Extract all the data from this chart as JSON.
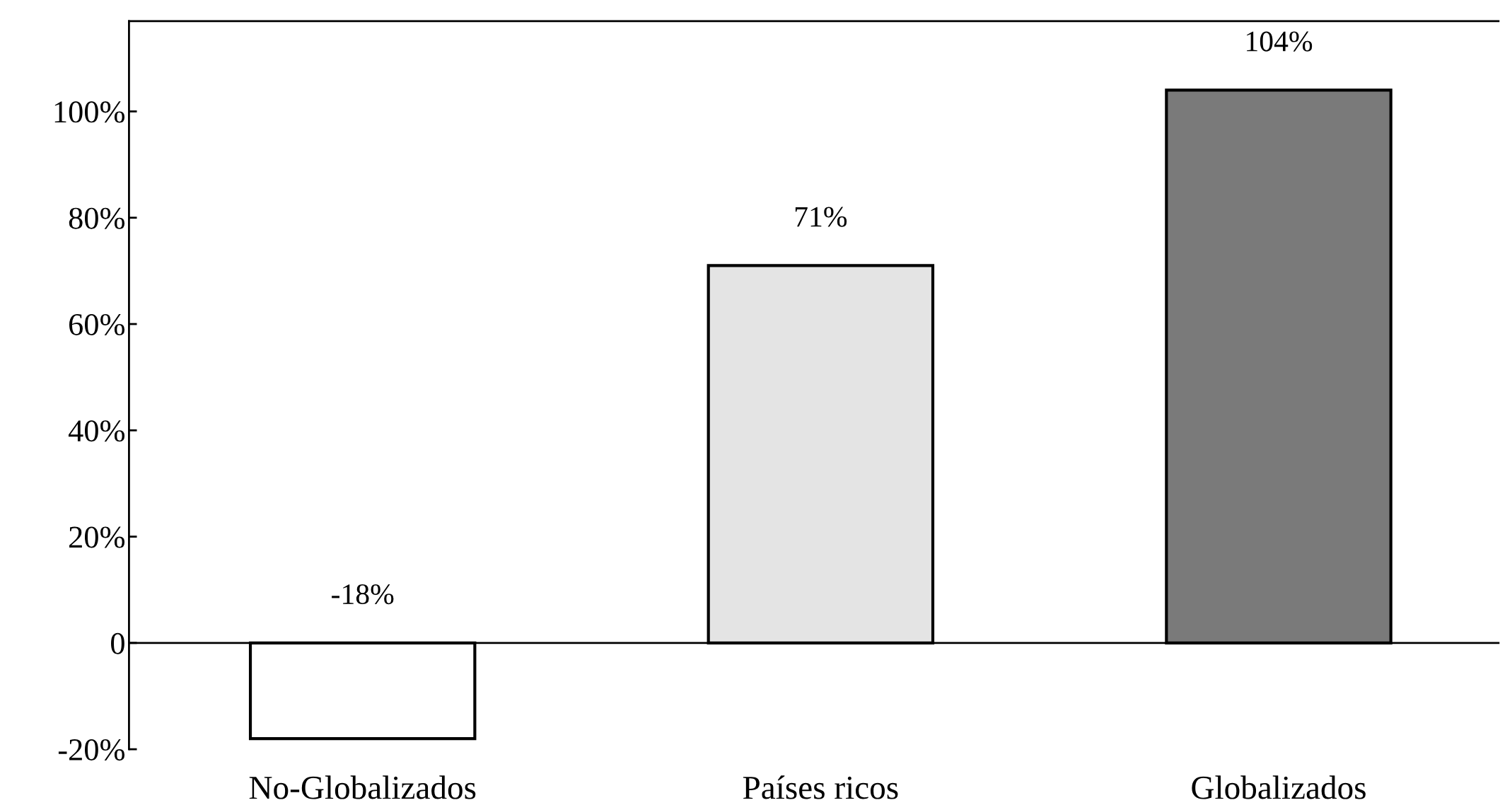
{
  "chart_data": {
    "type": "bar",
    "categories": [
      "No-Globalizados",
      "Países ricos",
      "Globalizados"
    ],
    "values": [
      -18,
      71,
      104
    ],
    "colors": [
      "#ffffff",
      "#e4e4e4",
      "#7a7a7a"
    ],
    "value_labels": [
      "-18%",
      "71%",
      "104%"
    ],
    "ylim": [
      -20,
      117
    ],
    "yticks": [
      {
        "value": -20,
        "label": "-20%"
      },
      {
        "value": 0,
        "label": "0"
      },
      {
        "value": 20,
        "label": "20%"
      },
      {
        "value": 40,
        "label": "40%"
      },
      {
        "value": 60,
        "label": "60%"
      },
      {
        "value": 80,
        "label": "80%"
      },
      {
        "value": 100,
        "label": "100%"
      }
    ]
  }
}
